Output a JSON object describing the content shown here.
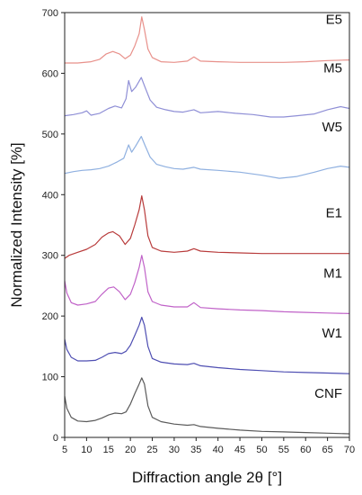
{
  "chart_data": {
    "type": "line",
    "xlabel": "Diffraction angle 2θ [°]",
    "ylabel": "Normalized Intensity [%]",
    "xlim": [
      5,
      70
    ],
    "ylim": [
      0,
      700
    ],
    "x_ticks": [
      5,
      10,
      15,
      20,
      25,
      30,
      35,
      40,
      45,
      50,
      55,
      60,
      65,
      70
    ],
    "y_ticks": [
      0,
      100,
      200,
      300,
      400,
      500,
      600,
      700
    ],
    "grid": false,
    "legend": "none",
    "series": [
      {
        "name": "E5",
        "color": "#e8908a",
        "points": [
          [
            5,
            617
          ],
          [
            8,
            617
          ],
          [
            11,
            619
          ],
          [
            13,
            623
          ],
          [
            14.5,
            632
          ],
          [
            16,
            636
          ],
          [
            17.5,
            632
          ],
          [
            18.8,
            624
          ],
          [
            20,
            630
          ],
          [
            21,
            645
          ],
          [
            22,
            665
          ],
          [
            22.6,
            693
          ],
          [
            23.2,
            672
          ],
          [
            24,
            640
          ],
          [
            25,
            626
          ],
          [
            27,
            619
          ],
          [
            30,
            618
          ],
          [
            33,
            620
          ],
          [
            34.5,
            627
          ],
          [
            36,
            620
          ],
          [
            40,
            619
          ],
          [
            45,
            618
          ],
          [
            50,
            618
          ],
          [
            55,
            618
          ],
          [
            60,
            619
          ],
          [
            65,
            621
          ],
          [
            70,
            622
          ]
        ]
      },
      {
        "name": "M5",
        "color": "#8f8fd6",
        "points": [
          [
            5,
            530
          ],
          [
            7,
            532
          ],
          [
            9,
            535
          ],
          [
            10,
            538
          ],
          [
            11,
            531
          ],
          [
            13,
            534
          ],
          [
            15,
            542
          ],
          [
            16.5,
            546
          ],
          [
            18,
            543
          ],
          [
            19,
            558
          ],
          [
            19.6,
            588
          ],
          [
            20.3,
            570
          ],
          [
            21.2,
            577
          ],
          [
            22.5,
            593
          ],
          [
            23.3,
            578
          ],
          [
            24.5,
            556
          ],
          [
            26,
            544
          ],
          [
            28,
            540
          ],
          [
            30,
            537
          ],
          [
            32,
            536
          ],
          [
            34.5,
            540
          ],
          [
            36,
            535
          ],
          [
            40,
            537
          ],
          [
            44,
            534
          ],
          [
            48,
            532
          ],
          [
            52,
            528
          ],
          [
            55,
            528
          ],
          [
            58,
            530
          ],
          [
            62,
            533
          ],
          [
            65,
            540
          ],
          [
            68,
            545
          ],
          [
            70,
            542
          ]
        ]
      },
      {
        "name": "W5",
        "color": "#8fb0e0",
        "points": [
          [
            5,
            435
          ],
          [
            7,
            438
          ],
          [
            9,
            440
          ],
          [
            11,
            441
          ],
          [
            13,
            443
          ],
          [
            15,
            447
          ],
          [
            17,
            454
          ],
          [
            18.5,
            460
          ],
          [
            19.6,
            482
          ],
          [
            20.3,
            470
          ],
          [
            21.2,
            480
          ],
          [
            22.5,
            496
          ],
          [
            23.3,
            482
          ],
          [
            24.5,
            462
          ],
          [
            26,
            450
          ],
          [
            28,
            446
          ],
          [
            30,
            443
          ],
          [
            32,
            442
          ],
          [
            34.5,
            445
          ],
          [
            36,
            442
          ],
          [
            40,
            440
          ],
          [
            45,
            437
          ],
          [
            50,
            432
          ],
          [
            54,
            427
          ],
          [
            58,
            430
          ],
          [
            62,
            437
          ],
          [
            65,
            443
          ],
          [
            68,
            447
          ],
          [
            70,
            445
          ]
        ]
      },
      {
        "name": "E1",
        "color": "#b83b3b",
        "points": [
          [
            5,
            295
          ],
          [
            6,
            300
          ],
          [
            8,
            305
          ],
          [
            10,
            310
          ],
          [
            12,
            318
          ],
          [
            13.5,
            330
          ],
          [
            15,
            337
          ],
          [
            16,
            339
          ],
          [
            17.5,
            332
          ],
          [
            18.8,
            318
          ],
          [
            20,
            328
          ],
          [
            21,
            350
          ],
          [
            22,
            375
          ],
          [
            22.6,
            398
          ],
          [
            23.2,
            375
          ],
          [
            24,
            332
          ],
          [
            25,
            313
          ],
          [
            27,
            307
          ],
          [
            30,
            305
          ],
          [
            33,
            307
          ],
          [
            34.5,
            311
          ],
          [
            36,
            307
          ],
          [
            40,
            305
          ],
          [
            45,
            304
          ],
          [
            50,
            303
          ],
          [
            55,
            303
          ],
          [
            60,
            303
          ],
          [
            65,
            303
          ],
          [
            70,
            303
          ]
        ]
      },
      {
        "name": "M1",
        "color": "#c062c8",
        "points": [
          [
            5,
            258
          ],
          [
            5.5,
            238
          ],
          [
            6.5,
            222
          ],
          [
            8,
            218
          ],
          [
            10,
            220
          ],
          [
            12,
            224
          ],
          [
            13.5,
            236
          ],
          [
            15,
            246
          ],
          [
            16.2,
            248
          ],
          [
            17.5,
            240
          ],
          [
            18.8,
            227
          ],
          [
            20,
            236
          ],
          [
            21,
            255
          ],
          [
            22,
            280
          ],
          [
            22.6,
            300
          ],
          [
            23.2,
            280
          ],
          [
            24,
            240
          ],
          [
            25,
            224
          ],
          [
            27,
            218
          ],
          [
            30,
            215
          ],
          [
            33,
            215
          ],
          [
            34.5,
            222
          ],
          [
            36,
            214
          ],
          [
            40,
            212
          ],
          [
            45,
            210
          ],
          [
            50,
            209
          ],
          [
            55,
            207
          ],
          [
            60,
            206
          ],
          [
            65,
            205
          ],
          [
            70,
            204
          ]
        ]
      },
      {
        "name": "W1",
        "color": "#4e4eb2",
        "points": [
          [
            5,
            162
          ],
          [
            5.5,
            145
          ],
          [
            6.5,
            132
          ],
          [
            8,
            126
          ],
          [
            10,
            126
          ],
          [
            12,
            127
          ],
          [
            13.5,
            132
          ],
          [
            15,
            138
          ],
          [
            16.5,
            140
          ],
          [
            18,
            138
          ],
          [
            19,
            142
          ],
          [
            20,
            152
          ],
          [
            21,
            168
          ],
          [
            22,
            185
          ],
          [
            22.6,
            198
          ],
          [
            23.2,
            185
          ],
          [
            24,
            150
          ],
          [
            25,
            130
          ],
          [
            27,
            124
          ],
          [
            30,
            121
          ],
          [
            33,
            120
          ],
          [
            34.5,
            122
          ],
          [
            36,
            118
          ],
          [
            40,
            115
          ],
          [
            45,
            112
          ],
          [
            50,
            110
          ],
          [
            55,
            108
          ],
          [
            60,
            107
          ],
          [
            65,
            106
          ],
          [
            70,
            105
          ]
        ]
      },
      {
        "name": "CNF",
        "color": "#5a5a5a",
        "points": [
          [
            5,
            68
          ],
          [
            5.5,
            48
          ],
          [
            6.5,
            33
          ],
          [
            8,
            27
          ],
          [
            10,
            26
          ],
          [
            12,
            28
          ],
          [
            13.5,
            32
          ],
          [
            15,
            37
          ],
          [
            16.5,
            40
          ],
          [
            18,
            39
          ],
          [
            19,
            42
          ],
          [
            20,
            55
          ],
          [
            21,
            72
          ],
          [
            22,
            88
          ],
          [
            22.6,
            98
          ],
          [
            23.2,
            88
          ],
          [
            24,
            52
          ],
          [
            25,
            33
          ],
          [
            27,
            26
          ],
          [
            30,
            22
          ],
          [
            33,
            20
          ],
          [
            34.5,
            21
          ],
          [
            36,
            18
          ],
          [
            40,
            15
          ],
          [
            45,
            12
          ],
          [
            50,
            10
          ],
          [
            55,
            9
          ],
          [
            60,
            8
          ],
          [
            65,
            7
          ],
          [
            70,
            6
          ]
        ]
      }
    ]
  }
}
